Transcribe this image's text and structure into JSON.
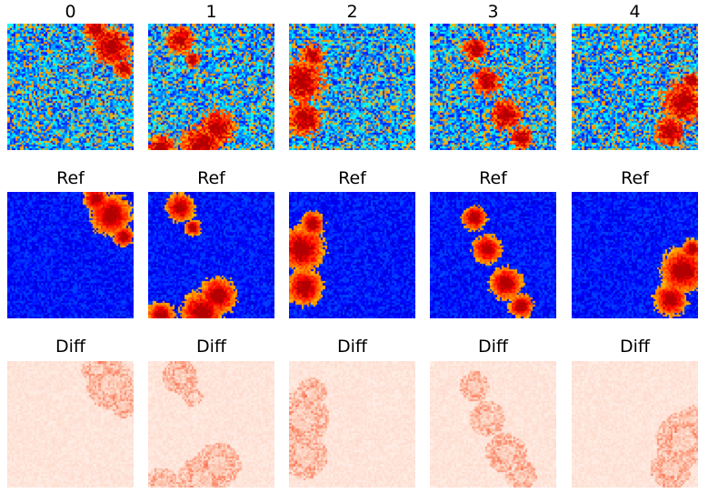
{
  "columns": [
    {
      "title": "0",
      "ref_title": "Ref",
      "diff_title": "Diff"
    },
    {
      "title": "1",
      "ref_title": "Ref",
      "diff_title": "Diff"
    },
    {
      "title": "2",
      "ref_title": "Ref",
      "diff_title": "Diff"
    },
    {
      "title": "3",
      "ref_title": "Ref",
      "diff_title": "Diff"
    },
    {
      "title": "4",
      "ref_title": "Ref",
      "diff_title": "Diff"
    }
  ],
  "colormaps": {
    "prediction": "jet",
    "reference": "jet",
    "difference": "Reds"
  }
}
